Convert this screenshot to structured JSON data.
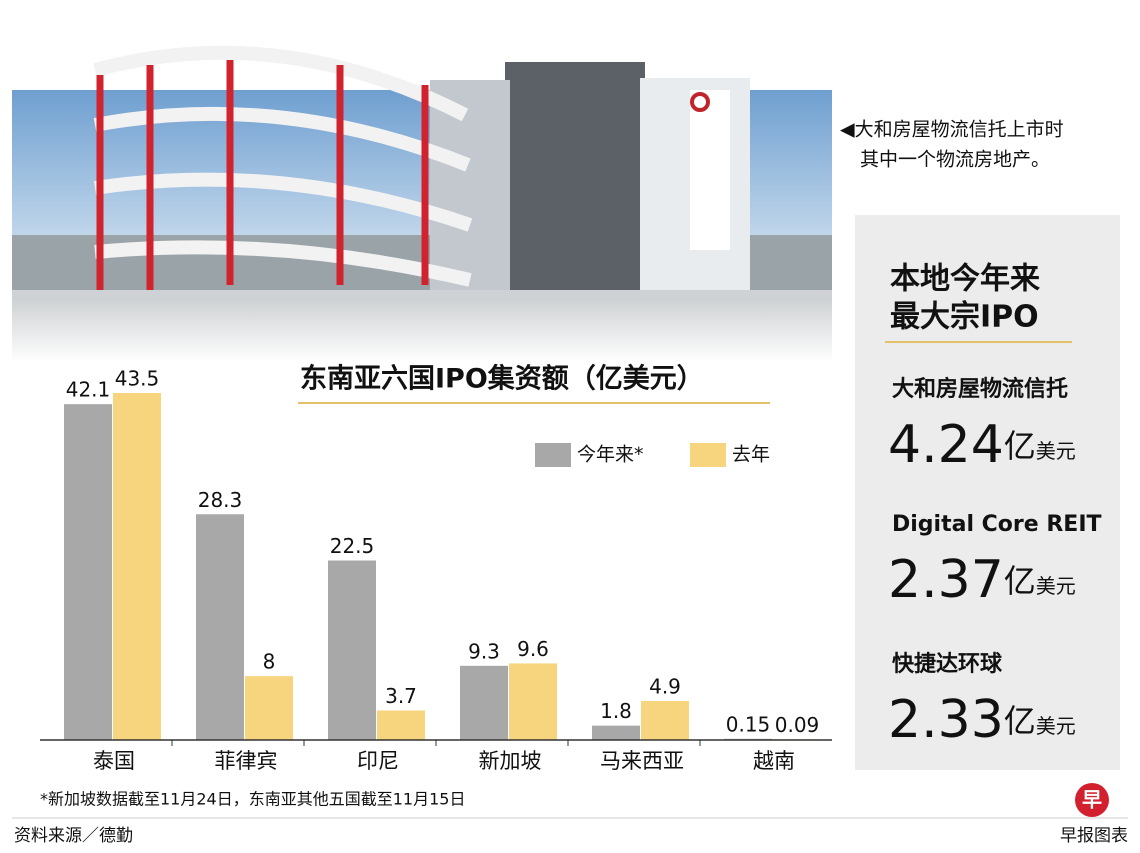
{
  "chart_data": {
    "type": "bar",
    "title": "东南亚六国IPO集资额（亿美元）",
    "categories": [
      "泰国",
      "菲律宾",
      "印尼",
      "新加坡",
      "马来西亚",
      "越南"
    ],
    "series": [
      {
        "name": "今年来*",
        "color": "#a8a8a8",
        "values": [
          42.1,
          28.3,
          22.5,
          9.3,
          1.8,
          0.15
        ]
      },
      {
        "name": "去年",
        "color": "#f7d47e",
        "values": [
          43.5,
          8,
          3.7,
          9.6,
          4.9,
          0.09
        ]
      }
    ],
    "footnote": "*新加坡数据截至11月24日，东南亚其他五国截至11月15日"
  },
  "photo_caption": [
    "◀大和房屋物流信托上市时",
    "其中一个物流房地产。"
  ],
  "panel": {
    "title": [
      "本地今年来",
      "最大宗IPO"
    ],
    "items": [
      {
        "name": "大和房屋物流信托",
        "amount": 4.24,
        "unit": "亿",
        "currency": "美元"
      },
      {
        "name": "Digital Core REIT",
        "amount": 2.37,
        "unit": "亿",
        "currency": "美元"
      },
      {
        "name": "快捷达环球",
        "amount": 2.33,
        "unit": "亿",
        "currency": "美元"
      }
    ]
  },
  "source": "资料来源／德勤",
  "credit": "早报图表",
  "logo": "早"
}
